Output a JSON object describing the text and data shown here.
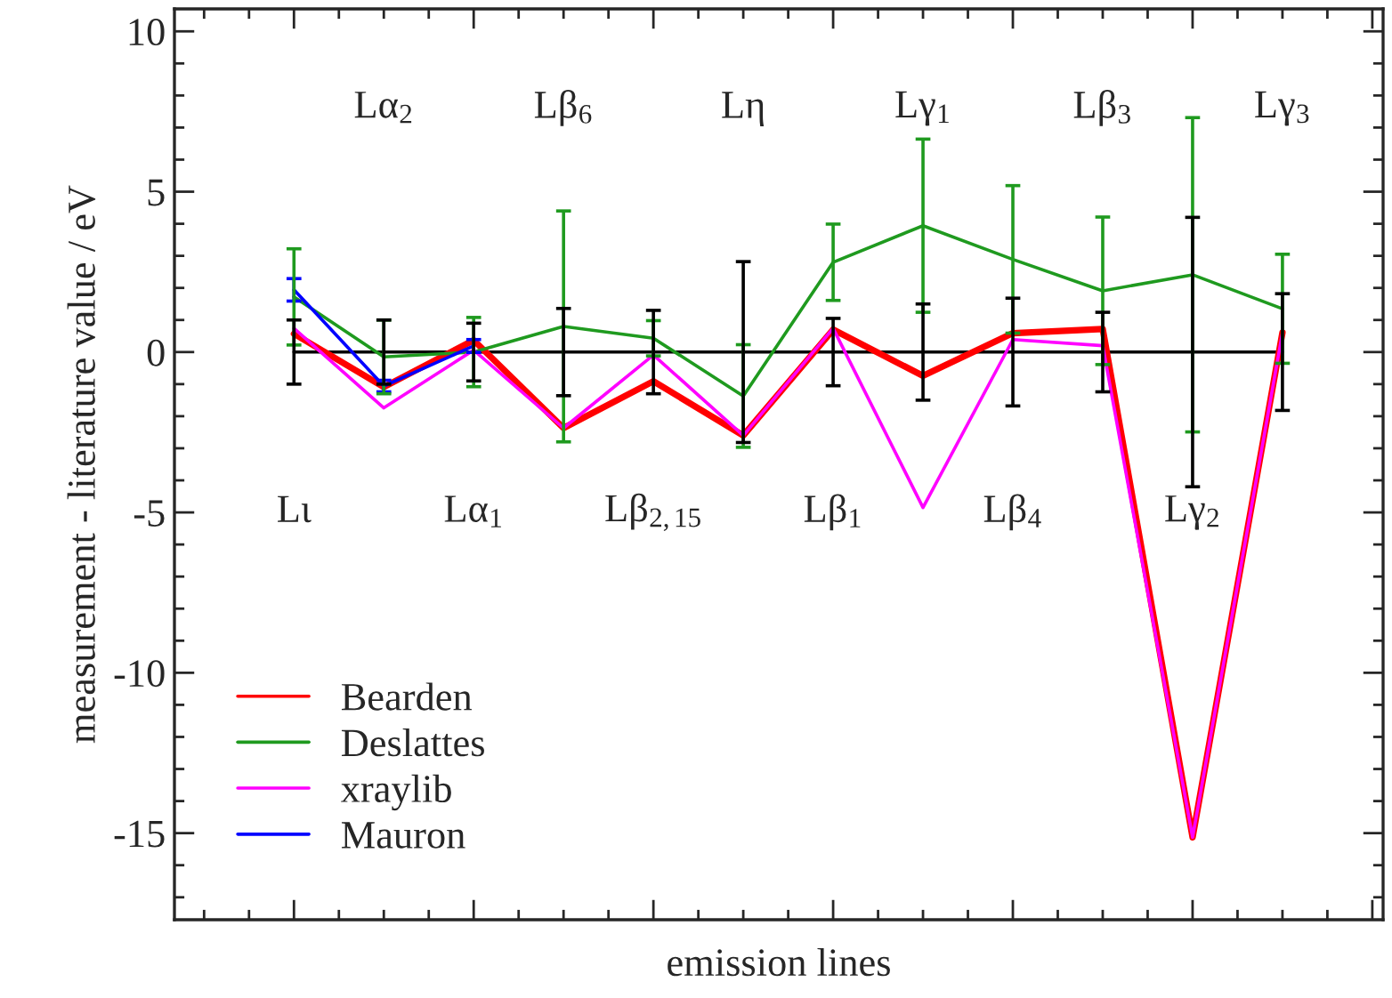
{
  "chart_data": {
    "type": "line",
    "xlabel": "emission lines",
    "ylabel": "measurement - literature value / eV",
    "categories": [
      "Lι",
      "Lα$_{2}$",
      "Lα$_{1}$",
      "Lβ$_{6}$",
      "Lβ$_{2,15}$",
      "Lη",
      "Lβ$_{1}$",
      "Lγ$_{1}$",
      "Lβ$_{4}$",
      "Lβ$_{3}$",
      "Lγ$_{2}$",
      "Lγ$_{3}$"
    ],
    "series": [
      {
        "color": "#000000",
        "values": [
          0,
          0,
          0,
          0,
          0,
          0,
          0,
          0,
          0,
          0,
          0,
          0
        ],
        "errors": [
          1.0,
          1.0,
          0.9,
          1.36,
          1.3,
          2.82,
          1.05,
          1.5,
          1.68,
          1.24,
          4.2,
          1.82
        ]
      },
      {
        "name": "Bearden",
        "color": "#ff0000",
        "values": [
          0.57,
          -1.09,
          0.37,
          -2.37,
          -0.91,
          -2.6,
          0.7,
          -0.74,
          0.59,
          0.72,
          -15.13,
          0.61
        ]
      },
      {
        "name": "Deslattes",
        "color": "#1f9a1f",
        "values": [
          1.72,
          -0.15,
          0.0,
          0.8,
          0.43,
          -1.37,
          2.8,
          3.94,
          2.89,
          1.91,
          2.41,
          1.35
        ],
        "errors": [
          1.5,
          1.15,
          1.08,
          3.6,
          0.55,
          1.6,
          1.19,
          2.7,
          2.3,
          2.3,
          4.9,
          1.7
        ]
      },
      {
        "name": "xraylib",
        "color": "#ff00ff",
        "values": [
          0.74,
          -1.74,
          0.06,
          -2.37,
          -0.09,
          -2.6,
          0.74,
          -4.85,
          0.39,
          0.2,
          -15.13,
          0.6
        ]
      },
      {
        "name": "Mauron",
        "color": "#0000ff",
        "values": [
          1.94,
          -1.06,
          0.19,
          null,
          null,
          null,
          null,
          null,
          null,
          null,
          null,
          null
        ],
        "errors": [
          0.35,
          0.18,
          0.2,
          null,
          null,
          null,
          null,
          null,
          null,
          null,
          null,
          null
        ]
      }
    ],
    "ylim": [
      -17.7,
      10.7
    ],
    "yticks": [
      -15,
      -10,
      -5,
      0,
      5,
      10
    ],
    "grid": false,
    "legend": "bottom left",
    "marker": "none",
    "line_style": "solid"
  }
}
